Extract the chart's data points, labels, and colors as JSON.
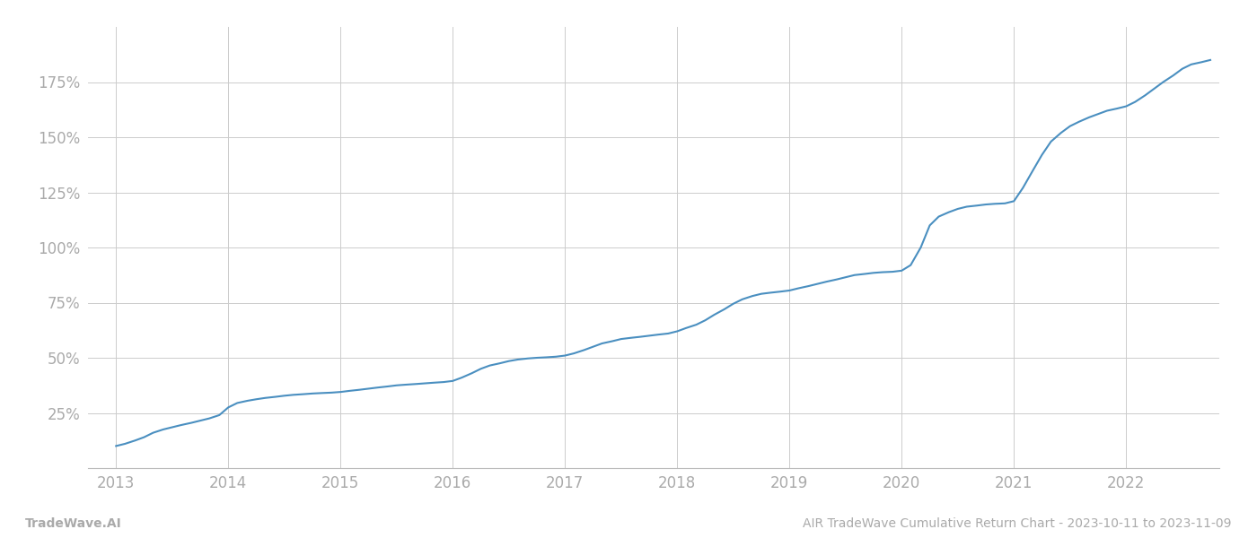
{
  "title": "AIR TradeWave Cumulative Return Chart - 2023-10-11 to 2023-11-09",
  "watermark": "TradeWave.AI",
  "x_years": [
    2013,
    2014,
    2015,
    2016,
    2017,
    2018,
    2019,
    2020,
    2021,
    2022
  ],
  "x_data": [
    2013.0,
    2013.08,
    2013.17,
    2013.25,
    2013.33,
    2013.42,
    2013.5,
    2013.58,
    2013.67,
    2013.75,
    2013.83,
    2013.92,
    2014.0,
    2014.08,
    2014.17,
    2014.25,
    2014.33,
    2014.42,
    2014.5,
    2014.58,
    2014.67,
    2014.75,
    2014.83,
    2014.92,
    2015.0,
    2015.08,
    2015.17,
    2015.25,
    2015.33,
    2015.42,
    2015.5,
    2015.58,
    2015.67,
    2015.75,
    2015.83,
    2015.92,
    2016.0,
    2016.08,
    2016.17,
    2016.25,
    2016.33,
    2016.42,
    2016.5,
    2016.58,
    2016.67,
    2016.75,
    2016.83,
    2016.92,
    2017.0,
    2017.08,
    2017.17,
    2017.25,
    2017.33,
    2017.42,
    2017.5,
    2017.58,
    2017.67,
    2017.75,
    2017.83,
    2017.92,
    2018.0,
    2018.08,
    2018.17,
    2018.25,
    2018.33,
    2018.42,
    2018.5,
    2018.58,
    2018.67,
    2018.75,
    2018.83,
    2018.92,
    2019.0,
    2019.08,
    2019.17,
    2019.25,
    2019.33,
    2019.42,
    2019.5,
    2019.58,
    2019.67,
    2019.75,
    2019.83,
    2019.92,
    2020.0,
    2020.08,
    2020.17,
    2020.25,
    2020.33,
    2020.42,
    2020.5,
    2020.58,
    2020.67,
    2020.75,
    2020.83,
    2020.92,
    2021.0,
    2021.08,
    2021.17,
    2021.25,
    2021.33,
    2021.42,
    2021.5,
    2021.58,
    2021.67,
    2021.75,
    2021.83,
    2021.92,
    2022.0,
    2022.08,
    2022.17,
    2022.25,
    2022.33,
    2022.42,
    2022.5,
    2022.58,
    2022.67,
    2022.75
  ],
  "y_data": [
    10.0,
    11.0,
    12.5,
    14.0,
    16.0,
    17.5,
    18.5,
    19.5,
    20.5,
    21.5,
    22.5,
    24.0,
    27.5,
    29.5,
    30.5,
    31.2,
    31.8,
    32.3,
    32.8,
    33.2,
    33.5,
    33.8,
    34.0,
    34.2,
    34.5,
    35.0,
    35.5,
    36.0,
    36.5,
    37.0,
    37.5,
    37.8,
    38.1,
    38.4,
    38.7,
    39.0,
    39.5,
    41.0,
    43.0,
    45.0,
    46.5,
    47.5,
    48.5,
    49.2,
    49.7,
    50.0,
    50.2,
    50.5,
    51.0,
    52.0,
    53.5,
    55.0,
    56.5,
    57.5,
    58.5,
    59.0,
    59.5,
    60.0,
    60.5,
    61.0,
    62.0,
    63.5,
    65.0,
    67.0,
    69.5,
    72.0,
    74.5,
    76.5,
    78.0,
    79.0,
    79.5,
    80.0,
    80.5,
    81.5,
    82.5,
    83.5,
    84.5,
    85.5,
    86.5,
    87.5,
    88.0,
    88.5,
    88.8,
    89.0,
    89.5,
    92.0,
    100.0,
    110.0,
    114.0,
    116.0,
    117.5,
    118.5,
    119.0,
    119.5,
    119.8,
    120.0,
    121.0,
    127.0,
    135.0,
    142.0,
    148.0,
    152.0,
    155.0,
    157.0,
    159.0,
    160.5,
    162.0,
    163.0,
    164.0,
    166.0,
    169.0,
    172.0,
    175.0,
    178.0,
    181.0,
    183.0,
    184.0,
    185.0
  ],
  "y_ticks": [
    25,
    50,
    75,
    100,
    125,
    150,
    175
  ],
  "line_color": "#4a8fc0",
  "grid_color": "#cccccc",
  "bg_color": "#ffffff",
  "text_color": "#aaaaaa",
  "footer_color": "#aaaaaa",
  "ylim": [
    0,
    200
  ],
  "xlim": [
    2012.75,
    2022.83
  ]
}
